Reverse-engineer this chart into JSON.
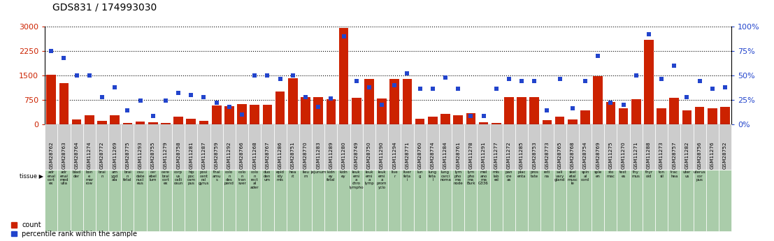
{
  "title": "GDS831 / 174993030",
  "samples": [
    "GSM28762",
    "GSM28763",
    "GSM28764",
    "GSM11274",
    "GSM28772",
    "GSM11269",
    "GSM28775",
    "GSM11293",
    "GSM28755",
    "GSM11279",
    "GSM28758",
    "GSM11281",
    "GSM11287",
    "GSM28759",
    "GSM11292",
    "GSM28766",
    "GSM11268",
    "GSM28767",
    "GSM11286",
    "GSM28751",
    "GSM28770",
    "GSM11283",
    "GSM11289",
    "GSM11280",
    "GSM28749",
    "GSM28750",
    "GSM11290",
    "GSM11294",
    "GSM28771",
    "GSM28760",
    "GSM28774",
    "GSM11284",
    "GSM28761",
    "GSM11278",
    "GSM11291",
    "GSM11277",
    "GSM11272",
    "GSM11285",
    "GSM28753",
    "GSM28773",
    "GSM28765",
    "GSM28768",
    "GSM28754",
    "GSM28769",
    "GSM11275",
    "GSM11270",
    "GSM11271",
    "GSM11288",
    "GSM11273",
    "GSM28757",
    "GSM11282",
    "GSM28756",
    "GSM11276",
    "GSM28752"
  ],
  "tissues": [
    "adr\nenal\ncort\nex",
    "adr\nenal\nmed\nulla",
    "blad\nder",
    "bon\ne\nmar\nrow",
    "brai\nn",
    "am\nygd\nala",
    "brai\nn\nfetal",
    "cau\ndate\nnucl\neus",
    "cer\nebel\nlum",
    "cere\nbral\ncort\nex",
    "corp\nus\ncalli\nosun",
    "hip\npoc\ncam\npus",
    "posi\ncent\nral\ngyrus",
    "thal\namu\ns",
    "colo\nn\ndes\npend",
    "colo\nn\ntran\nsver",
    "colo\nn\nrect\nal\nader",
    "duo\nden\num",
    "epid\nidy\nmis",
    "hea\nrt",
    "lieu\nm",
    "jejunum",
    "kidn\ney\nfetal",
    "kidn\ney",
    "leuk\nemi\na\nchro\nlympho",
    "leuk\nemi\na\nlymp\n",
    "leuk\nemi\na\nprom\nyclo",
    "live\nr",
    "liver\nfeta\ni",
    "lun\ng",
    "lung\nfeta\nl",
    "lung\ncarci\nnoma",
    "lym\npho\nma\nnode",
    "lym\npho\nma\nBurk",
    "mel\nano\nma\nG336",
    "mis\nlab\ned",
    "pan\ncre\nas",
    "plac\nenta",
    "pros\ntate",
    "reti\nna",
    "sali\nvary\ngland",
    "skel\netal\nmusc\nle",
    "spin\nal\ncord",
    "sple\nen",
    "sto\nmac",
    "test\nes",
    "thy\nmus",
    "thyr\noid",
    "ton\nsil",
    "trac\nhea",
    "uter\nus",
    "uterus\ncor\npus",
    "",
    ""
  ],
  "counts": [
    1520,
    1270,
    150,
    270,
    90,
    270,
    30,
    80,
    50,
    40,
    220,
    170,
    90,
    580,
    560,
    610,
    590,
    590,
    1010,
    1420,
    820,
    820,
    760,
    2950,
    800,
    1380,
    780,
    1380,
    1380,
    160,
    230,
    310,
    270,
    330,
    50,
    40,
    840,
    830,
    820,
    130,
    220,
    150,
    430,
    1480,
    670,
    480,
    760,
    2600,
    490,
    800,
    430,
    530,
    480,
    520
  ],
  "percentiles": [
    75,
    68,
    50,
    50,
    28,
    38,
    14,
    24,
    8,
    24,
    32,
    30,
    28,
    22,
    18,
    10,
    50,
    50,
    46,
    50,
    28,
    18,
    26,
    90,
    44,
    38,
    20,
    40,
    52,
    36,
    36,
    48,
    36,
    8,
    8,
    36,
    46,
    44,
    44,
    14,
    46,
    16,
    44,
    70,
    22,
    20,
    50,
    92,
    46,
    60,
    28,
    44,
    36,
    38
  ],
  "bar_color": "#cc2200",
  "scatter_color": "#2244cc",
  "bg_color": "#ffffff",
  "tick_color_left": "#cc2200",
  "tick_color_right": "#2244cc",
  "ylim_left": [
    0,
    3000
  ],
  "ylim_right": [
    0,
    100
  ],
  "yticks_left": [
    0,
    750,
    1500,
    2250,
    3000
  ],
  "yticks_right": [
    0,
    25,
    50,
    75,
    100
  ],
  "sample_cell_color": "#cccccc",
  "tissue_cell_color": "#aaccaa",
  "cell_border_color": "#ffffff"
}
